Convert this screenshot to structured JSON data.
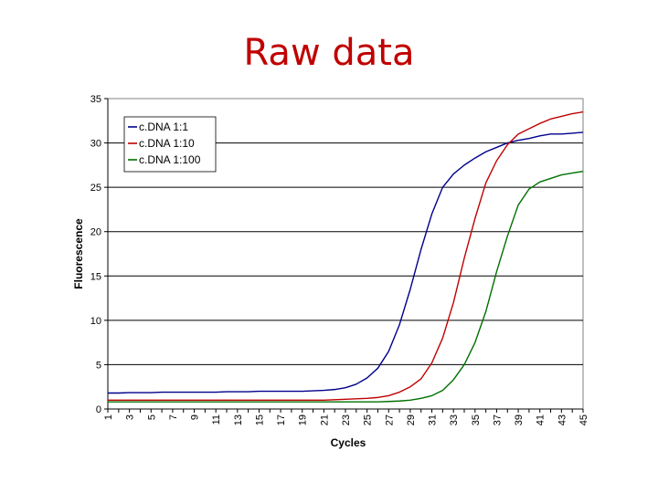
{
  "slide": {
    "title": "Raw data"
  },
  "chart_data": {
    "type": "line",
    "title": "",
    "xlabel": "Cycles",
    "ylabel": "Fluorescence",
    "xlim": [
      1,
      45
    ],
    "ylim": [
      0,
      35
    ],
    "y_ticks": [
      0,
      5,
      10,
      15,
      20,
      25,
      30,
      35
    ],
    "x_tick_labels": [
      "1",
      "3",
      "5",
      "7",
      "9",
      "11",
      "13",
      "15",
      "17",
      "19",
      "21",
      "23",
      "25",
      "27",
      "29",
      "31",
      "33",
      "35",
      "37",
      "39",
      "41",
      "43",
      "45"
    ],
    "grid": "horizontal major gridlines",
    "legend_position": "top-left",
    "x": [
      1,
      2,
      3,
      4,
      5,
      6,
      7,
      8,
      9,
      10,
      11,
      12,
      13,
      14,
      15,
      16,
      17,
      18,
      19,
      20,
      21,
      22,
      23,
      24,
      25,
      26,
      27,
      28,
      29,
      30,
      31,
      32,
      33,
      34,
      35,
      36,
      37,
      38,
      39,
      40,
      41,
      42,
      43,
      44,
      45
    ],
    "series": [
      {
        "name": "c.DNA 1:1",
        "color": "#00008b",
        "values": [
          1.8,
          1.8,
          1.85,
          1.85,
          1.85,
          1.9,
          1.9,
          1.9,
          1.9,
          1.9,
          1.9,
          1.95,
          1.95,
          1.95,
          2.0,
          2.0,
          2.0,
          2.0,
          2.0,
          2.05,
          2.1,
          2.2,
          2.4,
          2.8,
          3.5,
          4.6,
          6.5,
          9.5,
          13.5,
          18.0,
          22.0,
          25.0,
          26.5,
          27.5,
          28.3,
          29.0,
          29.5,
          30.0,
          30.3,
          30.5,
          30.8,
          31.0,
          31.0,
          31.1,
          31.2
        ]
      },
      {
        "name": "c.DNA 1:10",
        "color": "#c00000",
        "values": [
          1.0,
          1.0,
          1.0,
          1.0,
          1.0,
          1.0,
          1.0,
          1.0,
          1.0,
          1.0,
          1.0,
          1.0,
          1.0,
          1.0,
          1.0,
          1.0,
          1.0,
          1.0,
          1.0,
          1.0,
          1.0,
          1.05,
          1.1,
          1.15,
          1.2,
          1.3,
          1.5,
          1.9,
          2.5,
          3.4,
          5.2,
          8.0,
          12.0,
          17.0,
          21.5,
          25.5,
          28.0,
          29.8,
          31.0,
          31.6,
          32.2,
          32.7,
          33.0,
          33.3,
          33.5
        ]
      },
      {
        "name": "c.DNA 1:100",
        "color": "#007000",
        "values": [
          0.8,
          0.8,
          0.8,
          0.8,
          0.8,
          0.8,
          0.8,
          0.8,
          0.8,
          0.8,
          0.8,
          0.8,
          0.8,
          0.8,
          0.8,
          0.8,
          0.8,
          0.8,
          0.8,
          0.8,
          0.8,
          0.8,
          0.8,
          0.8,
          0.8,
          0.8,
          0.85,
          0.9,
          1.0,
          1.2,
          1.5,
          2.1,
          3.3,
          5.0,
          7.5,
          11.0,
          15.5,
          19.5,
          23.0,
          24.8,
          25.6,
          26.0,
          26.4,
          26.6,
          26.8
        ]
      }
    ]
  }
}
